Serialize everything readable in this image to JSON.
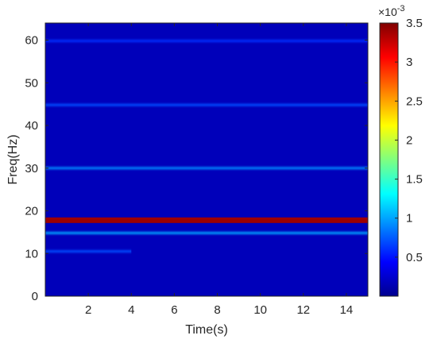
{
  "chart_data": {
    "type": "heatmap",
    "title": "",
    "xlabel": "Time(s)",
    "ylabel": "Freq(Hz)",
    "xlim": [
      0,
      15
    ],
    "ylim": [
      0,
      64
    ],
    "x_ticks": [
      2,
      4,
      6,
      8,
      10,
      12,
      14
    ],
    "y_ticks": [
      0,
      10,
      20,
      30,
      40,
      50,
      60
    ],
    "colorbar": {
      "colormap": "jet",
      "range": [
        0,
        0.0035
      ],
      "exponent_label": "×10",
      "exponent_power": "-3",
      "tick_values": [
        0.5,
        1,
        1.5,
        2,
        2.5,
        3,
        3.5
      ],
      "tick_labels": [
        "0.5",
        "1",
        "1.5",
        "2",
        "2.5",
        "3",
        "3.5"
      ]
    },
    "background_value": 0.0002,
    "bands": [
      {
        "freq": 17.8,
        "value": 0.0034,
        "from_time": 0,
        "to_time": 15
      },
      {
        "freq": 30.0,
        "value": 0.0009,
        "from_time": 0,
        "to_time": 15
      },
      {
        "freq": 44.8,
        "value": 0.0007,
        "from_time": 0,
        "to_time": 15
      },
      {
        "freq": 59.8,
        "value": 0.0006,
        "from_time": 0,
        "to_time": 15
      },
      {
        "freq": 14.8,
        "value": 0.001,
        "from_time": 0,
        "to_time": 15
      },
      {
        "freq": 10.5,
        "value": 0.0007,
        "from_time": 0,
        "to_time": 4
      }
    ]
  }
}
